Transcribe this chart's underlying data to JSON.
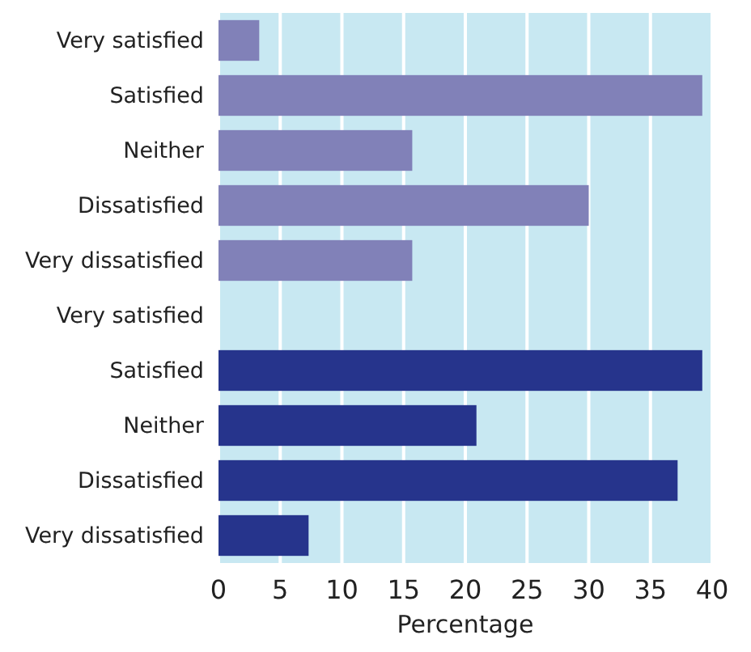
{
  "chart_data": {
    "type": "bar",
    "orientation": "horizontal",
    "xlabel": "Percentage",
    "categories": [
      "Very satisfied",
      "Satisfied",
      "Neither",
      "Dissatisfied",
      "Very dissatisfied",
      "Very satisfied",
      "Satisfied",
      "Neither",
      "Dissatisfied",
      "Very dissatisfied"
    ],
    "values": [
      3.3,
      39.2,
      15.7,
      30.0,
      15.7,
      0,
      39.2,
      20.9,
      37.2,
      7.3
    ],
    "colors": [
      "#8181b8",
      "#8181b8",
      "#8181b8",
      "#8181b8",
      "#8181b8",
      "#26348c",
      "#26348c",
      "#26348c",
      "#26348c",
      "#26348c"
    ],
    "xlim": [
      0,
      40
    ],
    "xticks": [
      0,
      5,
      10,
      15,
      20,
      25,
      30,
      35,
      40
    ],
    "grid": "x"
  }
}
